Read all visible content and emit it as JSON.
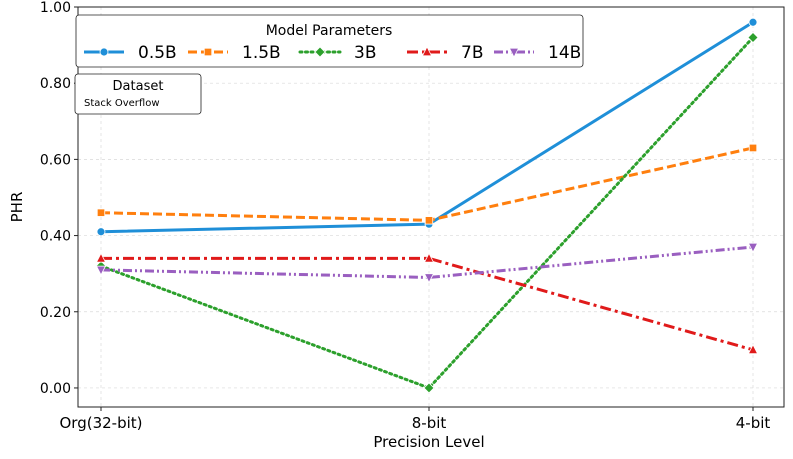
{
  "chart_data": {
    "type": "line",
    "xlabel": "Precision Level",
    "ylabel": "PHR",
    "categories": [
      "Org(32-bit)",
      "8-bit",
      "4-bit"
    ],
    "ylim": [
      -0.05,
      1.0
    ],
    "yticks": [
      "0.00",
      "0.20",
      "0.40",
      "0.60",
      "0.80",
      "1.00"
    ],
    "grid": true,
    "legend": {
      "title": "Model Parameters",
      "placement": "top-center"
    },
    "dataset_legend": {
      "title": "Dataset",
      "entry": "Stack Overflow",
      "placement": "top-left"
    },
    "series": [
      {
        "name": "0.5B",
        "values": [
          0.41,
          0.43,
          0.96
        ],
        "color": "#1f8fd8",
        "dash": "solid",
        "marker": "circle"
      },
      {
        "name": "1.5B",
        "values": [
          0.46,
          0.44,
          0.63
        ],
        "color": "#ff7f0e",
        "dash": "dashed",
        "marker": "square"
      },
      {
        "name": "3B",
        "values": [
          0.32,
          0.0,
          0.92
        ],
        "color": "#2ca02c",
        "dash": "dotted",
        "marker": "diamond"
      },
      {
        "name": "7B",
        "values": [
          0.34,
          0.34,
          0.1
        ],
        "color": "#e01a1a",
        "dash": "dashdot",
        "marker": "triangle-up"
      },
      {
        "name": "14B",
        "values": [
          0.31,
          0.29,
          0.37
        ],
        "color": "#9a5fc0",
        "dash": "dashdotdot",
        "marker": "triangle-down"
      }
    ]
  }
}
